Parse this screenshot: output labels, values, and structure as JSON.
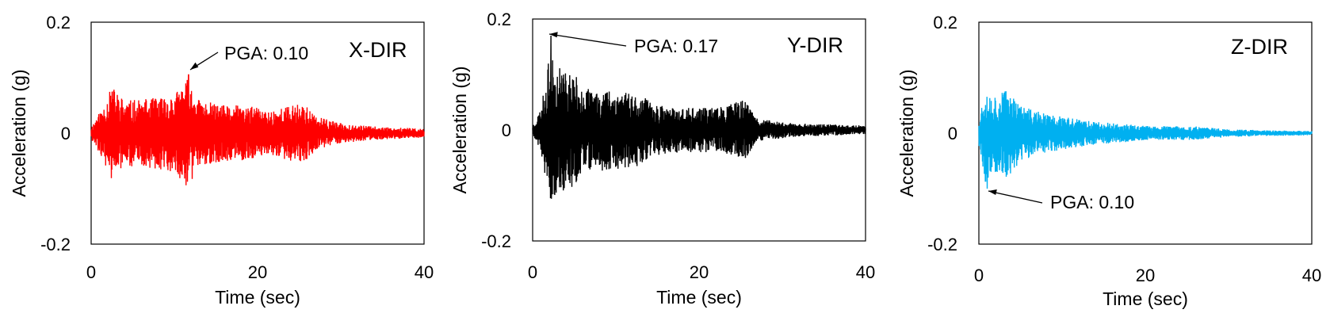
{
  "chart_data": [
    {
      "type": "line",
      "title": "",
      "direction_label": "X-DIR",
      "xlabel": "Time (sec)",
      "ylabel": "Acceleration (g)",
      "xlim": [
        0,
        40
      ],
      "ylim": [
        -0.2,
        0.2
      ],
      "xticks": [
        "0",
        "20",
        "40"
      ],
      "yticks": [
        "0.2",
        "0",
        "-0.2"
      ],
      "grid": false,
      "color": "#ff0000",
      "annotation": {
        "text": "PGA: 0.10",
        "x": 11.7,
        "y": 0.105
      },
      "envelope": [
        [
          0,
          0.012
        ],
        [
          1.5,
          0.05
        ],
        [
          2.5,
          0.085
        ],
        [
          4,
          0.06
        ],
        [
          6,
          0.06
        ],
        [
          8,
          0.065
        ],
        [
          10,
          0.07
        ],
        [
          11.5,
          0.1
        ],
        [
          13,
          0.06
        ],
        [
          16,
          0.05
        ],
        [
          19,
          0.05
        ],
        [
          21,
          0.04
        ],
        [
          24,
          0.05
        ],
        [
          25.5,
          0.055
        ],
        [
          27,
          0.03
        ],
        [
          30,
          0.018
        ],
        [
          34,
          0.012
        ],
        [
          40,
          0.008
        ]
      ],
      "peak": {
        "x": 11.7,
        "y": 0.105
      },
      "seed": 11
    },
    {
      "type": "line",
      "title": "",
      "direction_label": "Y-DIR",
      "xlabel": "Time (sec)",
      "ylabel": "Acceleration (g)",
      "xlim": [
        0,
        40
      ],
      "ylim": [
        -0.2,
        0.2
      ],
      "xticks": [
        "0",
        "20",
        "40"
      ],
      "yticks": [
        "0.2",
        "0",
        "-0.2"
      ],
      "grid": false,
      "color": "#000000",
      "annotation": {
        "text": "PGA: 0.17",
        "x": 2.2,
        "y": 0.17
      },
      "envelope": [
        [
          0,
          0.008
        ],
        [
          1,
          0.04
        ],
        [
          2,
          0.13
        ],
        [
          3,
          0.12
        ],
        [
          5,
          0.1
        ],
        [
          7,
          0.07
        ],
        [
          9,
          0.075
        ],
        [
          12,
          0.07
        ],
        [
          15,
          0.045
        ],
        [
          18,
          0.04
        ],
        [
          22,
          0.04
        ],
        [
          25.5,
          0.055
        ],
        [
          27,
          0.02
        ],
        [
          32,
          0.012
        ],
        [
          40,
          0.008
        ]
      ],
      "peak": {
        "x": 2.2,
        "y": 0.17
      },
      "seed": 23
    },
    {
      "type": "line",
      "title": "",
      "direction_label": "Z-DIR",
      "xlabel": "Time (sec)",
      "ylabel": "Acceleration (g)",
      "xlim": [
        0,
        40
      ],
      "ylim": [
        -0.2,
        0.2
      ],
      "xticks": [
        "0",
        "20",
        "40"
      ],
      "yticks": [
        "0.2",
        "0",
        "-0.2"
      ],
      "grid": false,
      "color": "#00b0f0",
      "annotation": {
        "text": "PGA: 0.10",
        "x": 1.0,
        "y": -0.1
      },
      "envelope": [
        [
          0,
          0.03
        ],
        [
          0.8,
          0.09
        ],
        [
          1.5,
          0.07
        ],
        [
          3.5,
          0.08
        ],
        [
          5,
          0.05
        ],
        [
          8,
          0.035
        ],
        [
          12,
          0.025
        ],
        [
          16,
          0.018
        ],
        [
          20,
          0.013
        ],
        [
          26,
          0.012
        ],
        [
          30,
          0.007
        ],
        [
          35,
          0.005
        ],
        [
          40,
          0.004
        ]
      ],
      "peak": {
        "x": 1.0,
        "y": -0.1
      },
      "seed": 37
    }
  ]
}
